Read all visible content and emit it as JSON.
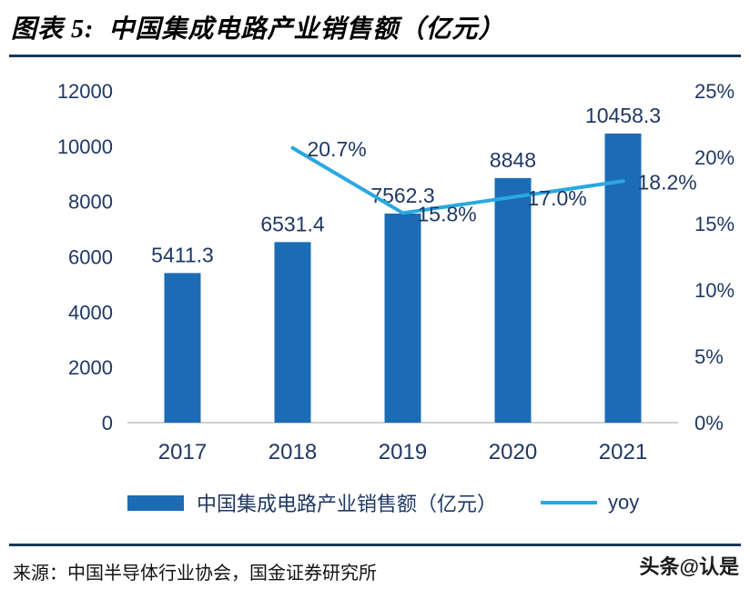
{
  "header": {
    "title": "图表 5:  中国集成电路产业销售额（亿元）"
  },
  "chart_data": {
    "type": "combo",
    "title": "中国集成电路产业销售额（亿元）",
    "categories": [
      "2017",
      "2018",
      "2019",
      "2020",
      "2021"
    ],
    "series": [
      {
        "name": "中国集成电路产业销售额（亿元）",
        "type": "bar",
        "axis": "left",
        "values": [
          5411.3,
          6531.4,
          7562.3,
          8848,
          10458.3
        ],
        "labels": [
          "5411.3",
          "6531.4",
          "7562.3",
          "8848",
          "10458.3"
        ]
      },
      {
        "name": "yoy",
        "type": "line",
        "axis": "right",
        "values": [
          null,
          20.7,
          15.8,
          17.0,
          18.2
        ],
        "labels": [
          null,
          "20.7%",
          "15.8%",
          "17.0%",
          "18.2%"
        ]
      }
    ],
    "left_axis": {
      "min": 0,
      "max": 12000,
      "step": 2000,
      "tick_labels": [
        "0",
        "2000",
        "4000",
        "6000",
        "8000",
        "10000",
        "12000"
      ]
    },
    "right_axis": {
      "min": 0,
      "max": 25,
      "step": 5,
      "tick_labels": [
        "0%",
        "5%",
        "10%",
        "15%",
        "20%",
        "25%"
      ]
    },
    "grid": false,
    "legend_position": "bottom"
  },
  "legend": {
    "bar_label": "中国集成电路产业销售额（亿元）",
    "line_label": "yoy"
  },
  "footer": {
    "source": "来源：中国半导体行业协会，国金证券研究所",
    "watermark": "头条@认是"
  },
  "colors": {
    "bar": "#1B6CB5",
    "line": "#29A8E0",
    "axis_text": "#1F3864",
    "rule": "#17365D",
    "axis_line": "#BFBFBF",
    "title_text": "#000000"
  }
}
